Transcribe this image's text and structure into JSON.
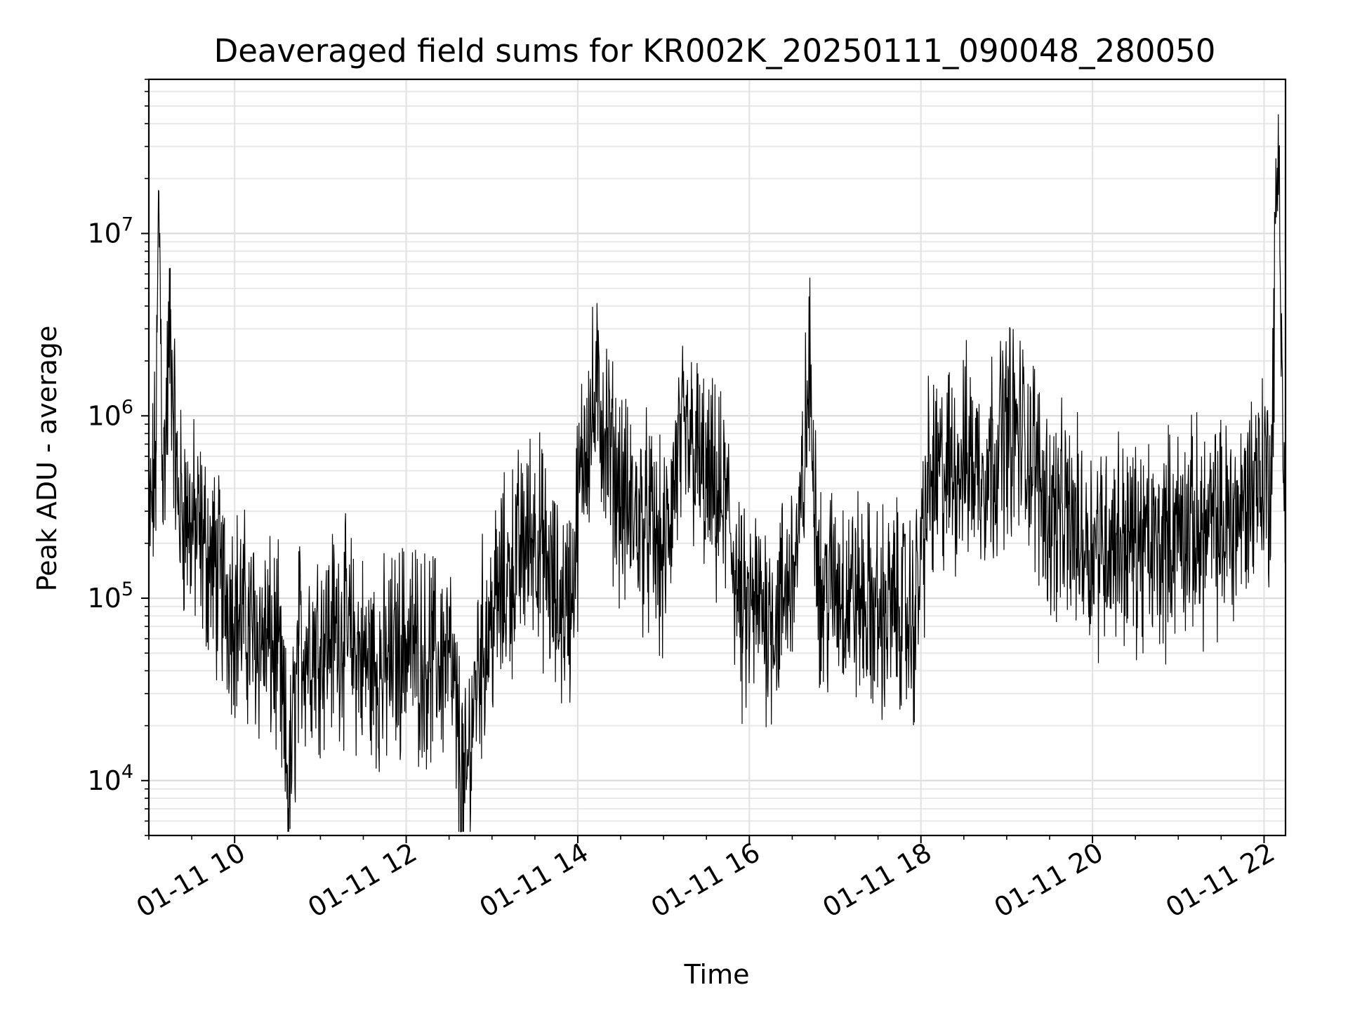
{
  "chart_data": {
    "type": "line",
    "title": "Deaveraged field sums for KR002K_20250111_090048_280050",
    "xlabel": "Time",
    "ylabel": "Peak ADU - average",
    "yscale": "log",
    "grid": true,
    "x_tick_labels": [
      "01-11 10",
      "01-11 12",
      "01-11 14",
      "01-11 16",
      "01-11 18",
      "01-11 20",
      "01-11 22"
    ],
    "x_tick_values": [
      "2025-01-11T10:00",
      "2025-01-11T12:00",
      "2025-01-11T14:00",
      "2025-01-11T16:00",
      "2025-01-11T18:00",
      "2025-01-11T20:00",
      "2025-01-11T22:00"
    ],
    "xlim": [
      "2025-01-11T09:00",
      "2025-01-11T22:15"
    ],
    "y_ticks": [
      {
        "base": "10",
        "exp": "4",
        "value": 10000
      },
      {
        "base": "10",
        "exp": "5",
        "value": 100000
      },
      {
        "base": "10",
        "exp": "6",
        "value": 1000000
      },
      {
        "base": "10",
        "exp": "7",
        "value": 10000000
      }
    ],
    "ylim": [
      5000,
      70000000
    ],
    "line_color": "#000000",
    "series": [
      {
        "x": [
          "2025-01-11T09:00",
          "2025-01-11T09:05",
          "2025-01-11T09:07",
          "2025-01-11T09:10",
          "2025-01-11T09:15",
          "2025-01-11T09:20",
          "2025-01-11T09:30",
          "2025-01-11T09:40",
          "2025-01-11T09:50",
          "2025-01-11T10:00",
          "2025-01-11T10:10",
          "2025-01-11T10:20",
          "2025-01-11T10:30",
          "2025-01-11T10:38",
          "2025-01-11T10:45",
          "2025-01-11T11:00",
          "2025-01-11T11:15",
          "2025-01-11T11:30",
          "2025-01-11T11:45",
          "2025-01-11T12:00",
          "2025-01-11T12:15",
          "2025-01-11T12:30",
          "2025-01-11T12:41",
          "2025-01-11T12:50",
          "2025-01-11T13:00",
          "2025-01-11T13:15",
          "2025-01-11T13:30",
          "2025-01-11T13:45",
          "2025-01-11T13:55",
          "2025-01-11T14:05",
          "2025-01-11T14:15",
          "2025-01-11T14:25",
          "2025-01-11T14:35",
          "2025-01-11T14:50",
          "2025-01-11T15:00",
          "2025-01-11T15:10",
          "2025-01-11T15:20",
          "2025-01-11T15:30",
          "2025-01-11T15:45",
          "2025-01-11T15:55",
          "2025-01-11T16:05",
          "2025-01-11T16:20",
          "2025-01-11T16:35",
          "2025-01-11T16:42",
          "2025-01-11T16:50",
          "2025-01-11T17:00",
          "2025-01-11T17:15",
          "2025-01-11T17:30",
          "2025-01-11T17:45",
          "2025-01-11T17:55",
          "2025-01-11T18:05",
          "2025-01-11T18:20",
          "2025-01-11T18:30",
          "2025-01-11T18:45",
          "2025-01-11T19:00",
          "2025-01-11T19:15",
          "2025-01-11T19:30",
          "2025-01-11T19:45",
          "2025-01-11T20:00",
          "2025-01-11T20:15",
          "2025-01-11T20:30",
          "2025-01-11T20:45",
          "2025-01-11T21:00",
          "2025-01-11T21:15",
          "2025-01-11T21:30",
          "2025-01-11T21:45",
          "2025-01-11T21:55",
          "2025-01-11T22:05",
          "2025-01-11T22:10",
          "2025-01-11T22:14"
        ],
        "y": [
          200000,
          600000,
          17000000,
          400000,
          3000000,
          350000,
          250000,
          180000,
          120000,
          90000,
          70000,
          60000,
          50000,
          8500,
          55000,
          60000,
          70000,
          45000,
          40000,
          60000,
          45000,
          50000,
          7500,
          45000,
          80000,
          150000,
          250000,
          90000,
          100000,
          800000,
          1200000,
          500000,
          300000,
          250000,
          150000,
          600000,
          700000,
          400000,
          300000,
          70000,
          90000,
          80000,
          200000,
          1700000,
          100000,
          120000,
          100000,
          80000,
          90000,
          70000,
          400000,
          500000,
          600000,
          500000,
          900000,
          700000,
          300000,
          250000,
          200000,
          220000,
          200000,
          180000,
          250000,
          230000,
          250000,
          300000,
          500000,
          450000,
          45000000,
          300000
        ]
      }
    ]
  }
}
